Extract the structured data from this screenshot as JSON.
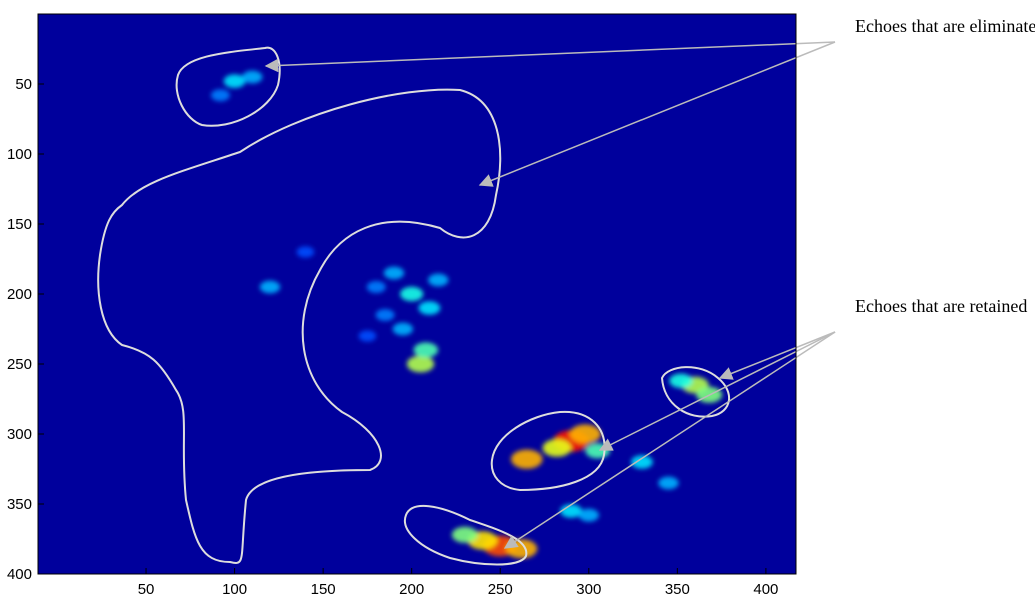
{
  "chart_data": {
    "type": "heatmap",
    "annotations": [
      "Echoes that are eliminated",
      "Echoes that are retained"
    ],
    "background": "#00009c",
    "x": [
      100,
      110,
      92,
      180,
      190,
      200,
      210,
      195,
      205,
      185,
      215,
      175,
      208,
      120,
      140,
      360,
      368,
      352,
      290,
      298,
      282,
      265,
      305,
      250,
      240,
      262,
      230,
      330,
      345,
      290,
      300
    ],
    "y": [
      48,
      45,
      58,
      195,
      185,
      200,
      210,
      225,
      250,
      215,
      190,
      230,
      240,
      195,
      170,
      265,
      272,
      262,
      305,
      300,
      310,
      318,
      312,
      380,
      376,
      382,
      372,
      320,
      335,
      355,
      358
    ],
    "values": [
      0.35,
      0.3,
      0.25,
      0.25,
      0.3,
      0.4,
      0.35,
      0.3,
      0.55,
      0.25,
      0.3,
      0.2,
      0.45,
      0.3,
      0.2,
      0.55,
      0.5,
      0.4,
      0.85,
      0.7,
      0.6,
      0.7,
      0.45,
      0.8,
      0.65,
      0.7,
      0.5,
      0.35,
      0.3,
      0.35,
      0.3
    ],
    "xlim": [
      -11,
      417
    ],
    "ylim": [
      0,
      400
    ],
    "y_reversed": true,
    "xticks": [
      50,
      100,
      150,
      200,
      250,
      300,
      350,
      400
    ],
    "yticks": [
      50,
      100,
      150,
      200,
      250,
      300,
      350,
      400
    ]
  }
}
